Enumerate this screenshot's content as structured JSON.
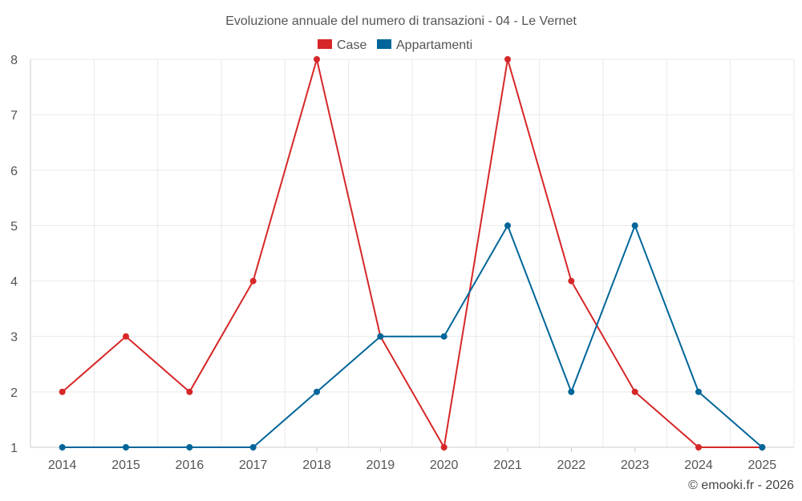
{
  "chart_data": {
    "type": "line",
    "title": "Evoluzione annuale del numero di transazioni - 04 - Le Vernet",
    "xlabel": "",
    "ylabel": "",
    "categories": [
      "2014",
      "2015",
      "2016",
      "2017",
      "2018",
      "2019",
      "2020",
      "2021",
      "2022",
      "2023",
      "2024",
      "2025"
    ],
    "ylim": [
      1,
      8
    ],
    "yticks": [
      "1",
      "2",
      "3",
      "4",
      "5",
      "6",
      "7",
      "8"
    ],
    "grid": true,
    "legend_position": "top-center",
    "series": [
      {
        "name": "Case",
        "color": "#d62728",
        "values": [
          2,
          3,
          2,
          4,
          8,
          3,
          1,
          8,
          4,
          2,
          1,
          1
        ]
      },
      {
        "name": "Appartamenti",
        "color": "#006699",
        "values": [
          1,
          1,
          1,
          1,
          2,
          3,
          3,
          5,
          2,
          5,
          2,
          1
        ]
      }
    ]
  },
  "credit": "© emooki.fr - 2026"
}
